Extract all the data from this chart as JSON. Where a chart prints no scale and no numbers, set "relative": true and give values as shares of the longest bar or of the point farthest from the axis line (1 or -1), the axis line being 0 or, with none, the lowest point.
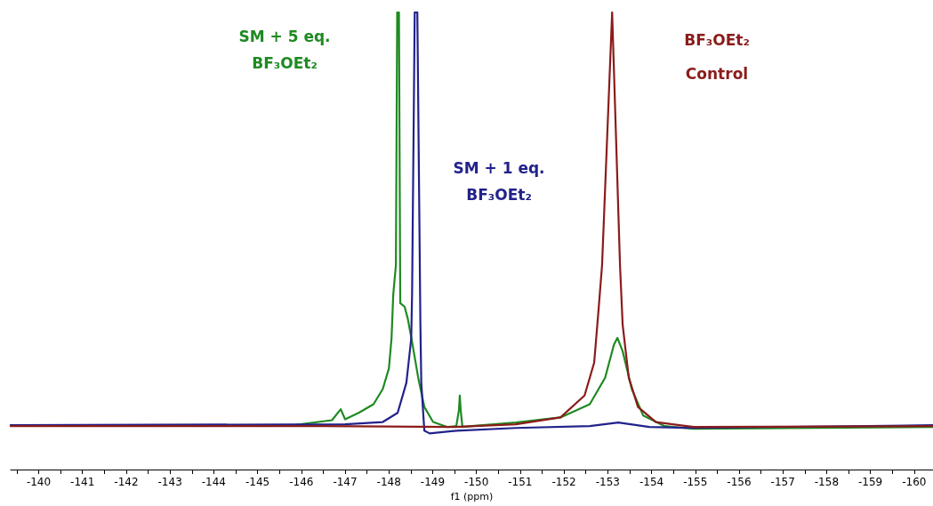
{
  "chart_data": {
    "type": "line",
    "relative": true,
    "xlabel": "f1 (ppm)",
    "xlim": [
      -139.36,
      -160.43
    ],
    "xticks": [
      {
        "value": -139.5,
        "label": null
      },
      -140,
      {
        "value": -140.5,
        "label": null
      },
      -141,
      {
        "value": -141.5,
        "label": null
      },
      -142,
      {
        "value": -142.5,
        "label": null
      },
      -143,
      {
        "value": -143.5,
        "label": null
      },
      -144,
      {
        "value": -144.5,
        "label": null
      },
      -145,
      {
        "value": -145.5,
        "label": null
      },
      -146,
      {
        "value": -146.5,
        "label": null
      },
      -147,
      {
        "value": -147.5,
        "label": null
      },
      -148,
      {
        "value": -148.5,
        "label": null
      },
      -149,
      {
        "value": -149.5,
        "label": null
      },
      -150,
      {
        "value": -150.5,
        "label": null
      },
      -151,
      {
        "value": -151.5,
        "label": null
      },
      -152,
      {
        "value": -152.5,
        "label": null
      },
      -153,
      {
        "value": -153.5,
        "label": null
      },
      -154,
      {
        "value": -154.5,
        "label": null
      },
      -155,
      {
        "value": -155.5,
        "label": null
      },
      -156,
      {
        "value": -156.5,
        "label": null
      },
      -157,
      {
        "value": -157.5,
        "label": null
      },
      -158,
      {
        "value": -158.5,
        "label": null
      },
      -159,
      {
        "value": -159.5,
        "label": null
      },
      -160
    ],
    "grid": false,
    "marker": "none",
    "line_style": "solid",
    "series": [
      {
        "name": "SM + 5 eq.\nBF₃OEt₂",
        "color": "#1f8a22",
        "x": [
          -139.36,
          -145.82,
          -146.7,
          -146.9,
          -147.0,
          -147.31,
          -147.65,
          -147.86,
          -148.0,
          -148.06,
          -148.1,
          -148.16,
          -148.19,
          -148.23,
          -148.26,
          -148.36,
          -148.43,
          -148.53,
          -148.67,
          -148.81,
          -149.01,
          -149.34,
          -149.54,
          -149.6,
          -149.62,
          -149.64,
          -149.68,
          -149.89,
          -150.9,
          -151.92,
          -152.59,
          -152.94,
          -153.14,
          -153.22,
          -153.34,
          -153.55,
          -153.81,
          -154.3,
          -154.97,
          -160.43
        ],
        "values": [
          0.097,
          0.097,
          0.108,
          0.132,
          0.11,
          0.124,
          0.143,
          0.176,
          0.221,
          0.286,
          0.383,
          0.447,
          1.0,
          1.0,
          0.364,
          0.356,
          0.331,
          0.279,
          0.201,
          0.137,
          0.104,
          0.093,
          0.095,
          0.13,
          0.162,
          0.13,
          0.093,
          0.095,
          0.103,
          0.114,
          0.143,
          0.201,
          0.273,
          0.288,
          0.259,
          0.176,
          0.118,
          0.095,
          0.089,
          0.093
        ]
      },
      {
        "name": "SM + 1 eq.\nBF₃OEt₂",
        "color": "#22228c",
        "x": [
          -139.36,
          -147.0,
          -147.86,
          -148.2,
          -148.4,
          -148.51,
          -148.53,
          -148.59,
          -148.65,
          -148.72,
          -148.74,
          -148.81,
          -148.93,
          -149.54,
          -150.9,
          -152.59,
          -153.24,
          -153.95,
          -154.97,
          -160.43
        ],
        "values": [
          0.097,
          0.099,
          0.104,
          0.124,
          0.19,
          0.286,
          0.383,
          1.0,
          1.0,
          0.317,
          0.19,
          0.085,
          0.079,
          0.085,
          0.091,
          0.095,
          0.103,
          0.093,
          0.091,
          0.097
        ]
      },
      {
        "name": "BF₃OEt₂\nControl",
        "color": "#8b1c1c",
        "x": [
          -139.36,
          -146.5,
          -149.5,
          -150.9,
          -151.92,
          -152.47,
          -152.69,
          -152.79,
          -152.87,
          -153.1,
          -153.28,
          -153.34,
          -153.48,
          -153.69,
          -154.1,
          -154.97,
          -160.43
        ],
        "values": [
          0.095,
          0.095,
          0.093,
          0.099,
          0.114,
          0.162,
          0.234,
          0.35,
          0.447,
          1.0,
          0.447,
          0.317,
          0.201,
          0.137,
          0.104,
          0.093,
          0.095
        ]
      }
    ]
  }
}
